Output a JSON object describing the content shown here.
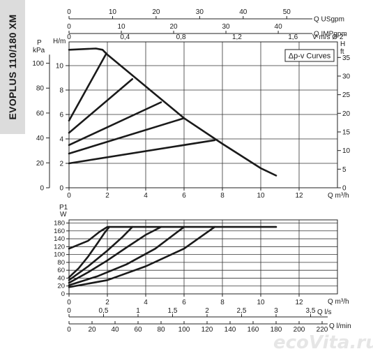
{
  "title": "EVOPLUS 110/180 XM",
  "watermark": "ecoVita.ru",
  "chart_data": [
    {
      "type": "line",
      "name": "head",
      "legend_box": "Δp-v Curves",
      "x_axis_bottom": {
        "label": "Q m³/h",
        "ticks": [
          0,
          2,
          4,
          6,
          8,
          10,
          12
        ],
        "xlim": [
          0,
          14
        ]
      },
      "top_axes": [
        {
          "label": "Q USgpm",
          "ticks": [
            0,
            10,
            20,
            30,
            40,
            50
          ],
          "factor": 0.2271
        },
        {
          "label": "Q IMPgpm",
          "ticks": [
            0,
            10,
            20,
            30,
            40
          ],
          "factor": 0.2728
        },
        {
          "label": "V m/s Ø 2\"",
          "ticks": [
            0,
            0.4,
            0.8,
            1.2,
            1.6
          ],
          "ticklabels": [
            "0",
            "0,4",
            "0,8",
            "1,2",
            "1,6"
          ],
          "factor": 7.3
        }
      ],
      "y_axis_left": {
        "label": "H/m",
        "ticks": [
          0,
          2,
          4,
          6,
          8,
          10
        ],
        "ylim": [
          0,
          12
        ]
      },
      "y_axis_kpa": {
        "label": "P kPa",
        "ticks": [
          0,
          20,
          40,
          60,
          80,
          100
        ]
      },
      "y_axis_right": {
        "label": "H ft",
        "ticks": [
          0,
          5,
          10,
          15,
          20,
          25,
          30,
          35
        ]
      },
      "grid": true,
      "series": [
        {
          "points": [
            [
              0,
              11.3
            ],
            [
              1.4,
              11.4
            ],
            [
              1.75,
              11.3
            ],
            [
              2.0,
              10.9
            ],
            [
              4.0,
              8.3
            ],
            [
              6.0,
              5.7
            ],
            [
              8.0,
              3.6
            ],
            [
              10.0,
              1.6
            ],
            [
              10.8,
              1.0
            ]
          ]
        },
        {
          "points": [
            [
              0,
              5.5
            ],
            [
              1.95,
              11.0
            ]
          ]
        },
        {
          "points": [
            [
              0,
              4.5
            ],
            [
              3.3,
              8.9
            ]
          ]
        },
        {
          "points": [
            [
              0,
              3.5
            ],
            [
              4.8,
              7.0
            ]
          ]
        },
        {
          "points": [
            [
              0,
              2.8
            ],
            [
              6.0,
              5.7
            ]
          ]
        },
        {
          "points": [
            [
              0,
              2.0
            ],
            [
              7.6,
              3.9
            ]
          ]
        }
      ]
    },
    {
      "type": "line",
      "name": "power",
      "y_axis": {
        "label": "P1 W",
        "ticks": [
          0,
          20,
          40,
          60,
          80,
          100,
          120,
          140,
          160,
          180
        ],
        "ylim": [
          0,
          190
        ]
      },
      "x_axis_bottom": {
        "label": "Q m³/h",
        "ticks": [
          0,
          2,
          4,
          6,
          8,
          10,
          12
        ],
        "xlim": [
          0,
          14
        ]
      },
      "bottom_axes": [
        {
          "label": "Q l/s",
          "ticks": [
            0,
            0.5,
            1,
            1.5,
            2,
            2.5,
            3,
            3.5
          ],
          "ticklabels": [
            "0",
            "0,5",
            "1",
            "1,5",
            "2",
            "2,5",
            "3",
            "3,5"
          ],
          "factor": 3.6
        },
        {
          "label": "Q l/min",
          "ticks": [
            0,
            20,
            40,
            60,
            80,
            100,
            120,
            140,
            160,
            180,
            200,
            220
          ],
          "factor": 0.06
        }
      ],
      "grid": true,
      "series": [
        {
          "points": [
            [
              0,
              115
            ],
            [
              1,
              135
            ],
            [
              1.6,
              158
            ],
            [
              2.0,
              170
            ],
            [
              10.8,
              170
            ]
          ]
        },
        {
          "points": [
            [
              0,
              42
            ],
            [
              0.5,
              65
            ],
            [
              1.0,
              95
            ],
            [
              1.5,
              130
            ],
            [
              1.85,
              155
            ],
            [
              2.1,
              170
            ]
          ]
        },
        {
          "points": [
            [
              0,
              35
            ],
            [
              1.0,
              70
            ],
            [
              2.0,
              110
            ],
            [
              2.8,
              145
            ],
            [
              3.3,
              170
            ]
          ]
        },
        {
          "points": [
            [
              0,
              28
            ],
            [
              1.0,
              55
            ],
            [
              2.0,
              85
            ],
            [
              3.0,
              118
            ],
            [
              4.0,
              150
            ],
            [
              4.8,
              170
            ]
          ]
        },
        {
          "points": [
            [
              0,
              22
            ],
            [
              1.5,
              45
            ],
            [
              3.0,
              75
            ],
            [
              4.5,
              115
            ],
            [
              6.0,
              170
            ]
          ]
        },
        {
          "points": [
            [
              0,
              17
            ],
            [
              2.0,
              35
            ],
            [
              4.0,
              70
            ],
            [
              6.0,
              115
            ],
            [
              7.6,
              170
            ]
          ]
        }
      ]
    }
  ]
}
